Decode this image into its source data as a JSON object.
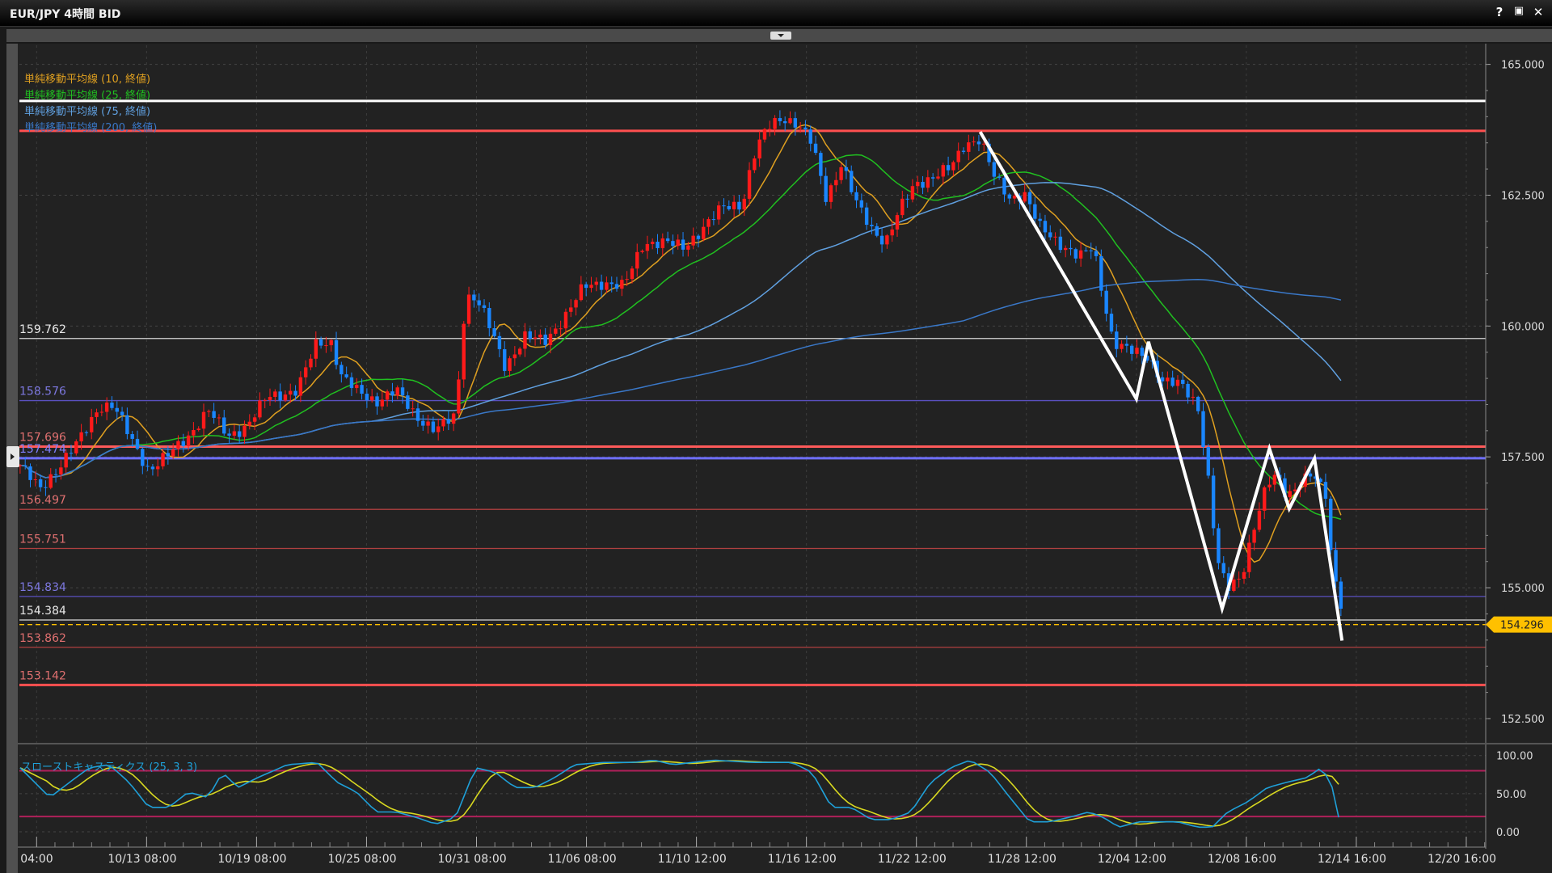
{
  "window": {
    "title": "EUR/JPY 4時間 BID",
    "help_label": "?",
    "maximize_icon": "maximize-icon",
    "close_icon": "close-icon"
  },
  "legend": [
    {
      "label": "単純移動平均線 (10, 終値)",
      "color": "#e0a020",
      "period": 10
    },
    {
      "label": "単純移動平均線 (25, 終値)",
      "color": "#20c020",
      "period": 25
    },
    {
      "label": "単純移動平均線 (75, 終値)",
      "color": "#60a0e0",
      "period": 75
    },
    {
      "label": "単純移動平均線 (200, 終値)",
      "color": "#3a78c8",
      "period": 200
    }
  ],
  "stoch_label": "スローストキャスティクス (25, 3, 3)",
  "current_price": "154.296",
  "chart_data": [
    {
      "type": "candlestick",
      "symbol": "EUR/JPY",
      "timeframe": "4時間",
      "ylim": [
        152.0,
        166.0
      ],
      "yticks": [
        "165.000",
        "162.500",
        "160.000",
        "157.500",
        "155.000",
        "152.500"
      ],
      "xticks": [
        "04:00",
        "10/13 08:00",
        "10/19 08:00",
        "10/25 08:00",
        "10/31 08:00",
        "11/06 08:00",
        "11/10 12:00",
        "11/16 12:00",
        "11/22 12:00",
        "11/28 12:00",
        "12/04 12:00",
        "12/08 16:00",
        "12/14 16:00",
        "12/20 16:00"
      ],
      "grid": true,
      "up_color": "#ff1a1a",
      "down_color": "#1a86ff",
      "close_path_tick_index_vs_price": [
        [
          -0.15,
          157.34
        ],
        [
          0.03,
          156.87
        ],
        [
          0.21,
          157.34
        ],
        [
          0.39,
          157.81
        ],
        [
          0.57,
          158.48
        ],
        [
          0.7,
          158.48
        ],
        [
          0.84,
          157.91
        ],
        [
          1.02,
          157.25
        ],
        [
          1.2,
          157.53
        ],
        [
          1.38,
          157.91
        ],
        [
          1.56,
          158.38
        ],
        [
          1.74,
          157.91
        ],
        [
          1.92,
          158.1
        ],
        [
          2.1,
          158.66
        ],
        [
          2.37,
          158.76
        ],
        [
          2.55,
          159.7
        ],
        [
          2.68,
          159.7
        ],
        [
          2.77,
          159.04
        ],
        [
          2.91,
          158.76
        ],
        [
          3.09,
          158.57
        ],
        [
          3.27,
          158.76
        ],
        [
          3.45,
          158.29
        ],
        [
          3.63,
          158.0
        ],
        [
          3.81,
          158.29
        ],
        [
          3.9,
          160.56
        ],
        [
          3.99,
          160.56
        ],
        [
          4.08,
          160.18
        ],
        [
          4.26,
          159.23
        ],
        [
          4.44,
          159.8
        ],
        [
          4.62,
          159.7
        ],
        [
          4.8,
          160.18
        ],
        [
          4.98,
          160.75
        ],
        [
          5.16,
          160.84
        ],
        [
          5.34,
          160.75
        ],
        [
          5.52,
          161.6
        ],
        [
          5.7,
          161.6
        ],
        [
          5.88,
          161.5
        ],
        [
          6.06,
          161.88
        ],
        [
          6.24,
          162.26
        ],
        [
          6.42,
          162.35
        ],
        [
          6.51,
          163.2
        ],
        [
          6.64,
          163.77
        ],
        [
          6.78,
          164.0
        ],
        [
          6.91,
          163.87
        ],
        [
          7.05,
          163.49
        ],
        [
          7.18,
          162.45
        ],
        [
          7.32,
          163.11
        ],
        [
          7.45,
          162.35
        ],
        [
          7.59,
          161.88
        ],
        [
          7.72,
          161.6
        ],
        [
          7.86,
          162.26
        ],
        [
          7.99,
          162.73
        ],
        [
          8.13,
          162.83
        ],
        [
          8.31,
          163.01
        ],
        [
          8.44,
          163.49
        ],
        [
          8.58,
          163.58
        ],
        [
          8.71,
          162.83
        ],
        [
          8.85,
          162.45
        ],
        [
          8.98,
          162.54
        ],
        [
          9.12,
          161.88
        ],
        [
          9.3,
          161.6
        ],
        [
          9.48,
          161.31
        ],
        [
          9.61,
          161.5
        ],
        [
          9.7,
          160.56
        ],
        [
          9.79,
          159.7
        ],
        [
          9.93,
          159.52
        ],
        [
          10.11,
          159.42
        ],
        [
          10.24,
          158.95
        ],
        [
          10.42,
          158.85
        ],
        [
          10.56,
          158.48
        ],
        [
          10.65,
          157.15
        ],
        [
          10.74,
          155.45
        ],
        [
          10.83,
          154.98
        ],
        [
          10.96,
          155.26
        ],
        [
          11.05,
          156.02
        ],
        [
          11.19,
          156.96
        ],
        [
          11.28,
          157.15
        ],
        [
          11.37,
          156.77
        ],
        [
          11.46,
          156.96
        ],
        [
          11.59,
          157.15
        ],
        [
          11.73,
          156.77
        ],
        [
          11.77,
          155.64
        ],
        [
          11.86,
          154.6
        ]
      ],
      "horizontal_lines": [
        {
          "price": 164.3,
          "color": "#ffffff",
          "thick": true,
          "label": ""
        },
        {
          "price": 163.73,
          "color": "#ff5050",
          "thick": true,
          "label": ""
        },
        {
          "price": 159.762,
          "color": "#d8d8d8",
          "thick": false,
          "label": "159.762",
          "label_color": "#e8e8e8"
        },
        {
          "price": 158.576,
          "color": "#5a50c0",
          "thick": false,
          "label": "158.576",
          "label_color": "#7d78e0"
        },
        {
          "price": 157.696,
          "color": "#ff5a5a",
          "thick": true,
          "label": "157.696",
          "label_color": "#e07070"
        },
        {
          "price": 157.474,
          "color": "#6e6eff",
          "thick": true,
          "label": "157.474",
          "label_color": "#8080ff"
        },
        {
          "price": 156.497,
          "color": "#b04040",
          "thick": false,
          "label": "156.497",
          "label_color": "#e07070"
        },
        {
          "price": 155.751,
          "color": "#b04040",
          "thick": false,
          "label": "155.751",
          "label_color": "#e07070"
        },
        {
          "price": 154.834,
          "color": "#5a50c0",
          "thick": false,
          "label": "154.834",
          "label_color": "#7d78e0"
        },
        {
          "price": 154.384,
          "color": "#d8d8d8",
          "thick": false,
          "label": "154.384",
          "label_color": "#e8e8e8"
        },
        {
          "price": 153.862,
          "color": "#b04040",
          "thick": false,
          "label": "153.862",
          "label_color": "#e07070"
        },
        {
          "price": 153.142,
          "color": "#ff5050",
          "thick": true,
          "label": "153.142",
          "label_color": "#e07070"
        }
      ],
      "current_price_line": {
        "price": 154.296,
        "color": "#ffc000"
      },
      "zigzag_tick_index_vs_price": [
        [
          8.58,
          163.71
        ],
        [
          10.0,
          158.61
        ],
        [
          10.11,
          159.7
        ],
        [
          10.78,
          154.6
        ],
        [
          11.21,
          157.66
        ],
        [
          11.39,
          156.51
        ],
        [
          11.62,
          157.47
        ],
        [
          11.87,
          153.99
        ]
      ]
    },
    {
      "type": "line",
      "title": "スローストキャスティクス (25, 3, 3)",
      "ylim": [
        0,
        100
      ],
      "yticks": [
        "100.00",
        "50.00",
        "0.00"
      ],
      "levels": [
        80,
        20
      ],
      "level_color": "#b0205a",
      "k_color": "#1fa0d8",
      "d_color": "#d8d820",
      "k_tick_index_vs_value": [
        [
          -0.15,
          84
        ],
        [
          0.12,
          45
        ],
        [
          0.3,
          65
        ],
        [
          0.48,
          84
        ],
        [
          0.66,
          88
        ],
        [
          0.84,
          65
        ],
        [
          1.02,
          32
        ],
        [
          1.2,
          32
        ],
        [
          1.38,
          52
        ],
        [
          1.56,
          45
        ],
        [
          1.69,
          78
        ],
        [
          1.83,
          58
        ],
        [
          2.01,
          71
        ],
        [
          2.28,
          88
        ],
        [
          2.55,
          91
        ],
        [
          2.73,
          65
        ],
        [
          2.91,
          52
        ],
        [
          3.09,
          26
        ],
        [
          3.27,
          26
        ],
        [
          3.45,
          19
        ],
        [
          3.63,
          10
        ],
        [
          3.81,
          19
        ],
        [
          3.99,
          84
        ],
        [
          4.17,
          78
        ],
        [
          4.35,
          58
        ],
        [
          4.53,
          58
        ],
        [
          4.71,
          71
        ],
        [
          4.89,
          88
        ],
        [
          5.16,
          91
        ],
        [
          5.43,
          91
        ],
        [
          5.61,
          94
        ],
        [
          5.79,
          88
        ],
        [
          5.97,
          91
        ],
        [
          6.15,
          94
        ],
        [
          6.51,
          91
        ],
        [
          6.87,
          91
        ],
        [
          7.05,
          78
        ],
        [
          7.23,
          32
        ],
        [
          7.41,
          32
        ],
        [
          7.59,
          16
        ],
        [
          7.77,
          16
        ],
        [
          7.95,
          26
        ],
        [
          8.13,
          65
        ],
        [
          8.31,
          84
        ],
        [
          8.49,
          94
        ],
        [
          8.67,
          78
        ],
        [
          8.85,
          45
        ],
        [
          9.03,
          13
        ],
        [
          9.21,
          13
        ],
        [
          9.39,
          19
        ],
        [
          9.57,
          26
        ],
        [
          9.7,
          19
        ],
        [
          9.84,
          6
        ],
        [
          10.02,
          13
        ],
        [
          10.2,
          13
        ],
        [
          10.38,
          13
        ],
        [
          10.56,
          6
        ],
        [
          10.69,
          6
        ],
        [
          10.83,
          26
        ],
        [
          11.01,
          39
        ],
        [
          11.19,
          58
        ],
        [
          11.37,
          65
        ],
        [
          11.55,
          71
        ],
        [
          11.68,
          84
        ],
        [
          11.77,
          65
        ],
        [
          11.84,
          19
        ]
      ]
    }
  ]
}
